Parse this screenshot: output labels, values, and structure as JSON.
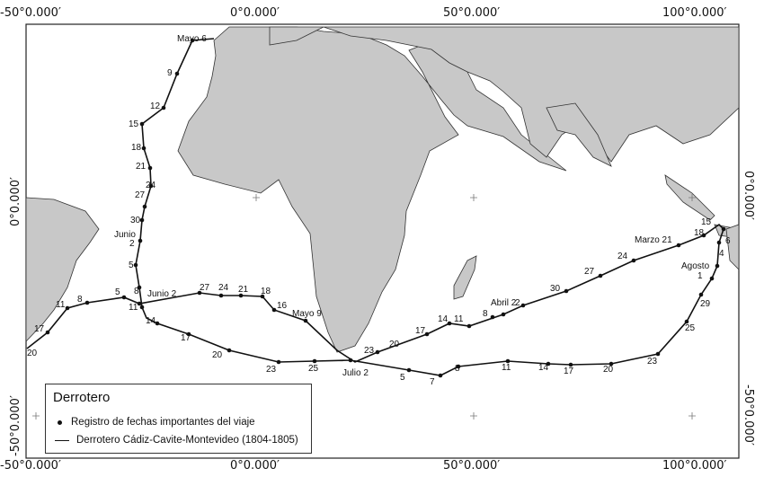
{
  "frame": {
    "top": [
      "-50°0.000′",
      "0°0.000′",
      "50°0.000′",
      "100°0.000′"
    ],
    "bottom": [
      "-50°0.000′",
      "0°0.000′",
      "50°0.000′",
      "100°0.000′"
    ],
    "left": [
      "0°0.000′",
      "-50°0.000′"
    ],
    "right": [
      "0°0.000′",
      "-50°0.000′"
    ]
  },
  "legend": {
    "title": "Derrotero",
    "point_label": "Registro de fechas importantes del viaje",
    "line_label": "Derrotero Cádiz-Cavite-Montevideo (1804-1805)"
  },
  "route_labels": [
    "Mayo 6",
    "9",
    "12",
    "15",
    "18",
    "21",
    "24",
    "27",
    "30",
    "Junio",
    "2",
    "5",
    "8",
    "5",
    "8",
    "11",
    "17",
    "20",
    "Junio 2",
    "27",
    "24",
    "21",
    "18",
    "16",
    "Mayo 9",
    "11",
    "14",
    "17",
    "20",
    "23",
    "25",
    "Julio 2",
    "5",
    "7",
    "8",
    "11",
    "14",
    "17",
    "20",
    "23",
    "25",
    "29",
    "1",
    "Agosto",
    "4",
    "6",
    "15",
    "18",
    "Marzo 21",
    "24",
    "27",
    "30",
    "2",
    "Abril 2",
    "8",
    "11",
    "14",
    "17",
    "20",
    "23"
  ],
  "colors": {
    "land": "#c8c8c8",
    "water": "#ffffff",
    "route": "#111111"
  }
}
